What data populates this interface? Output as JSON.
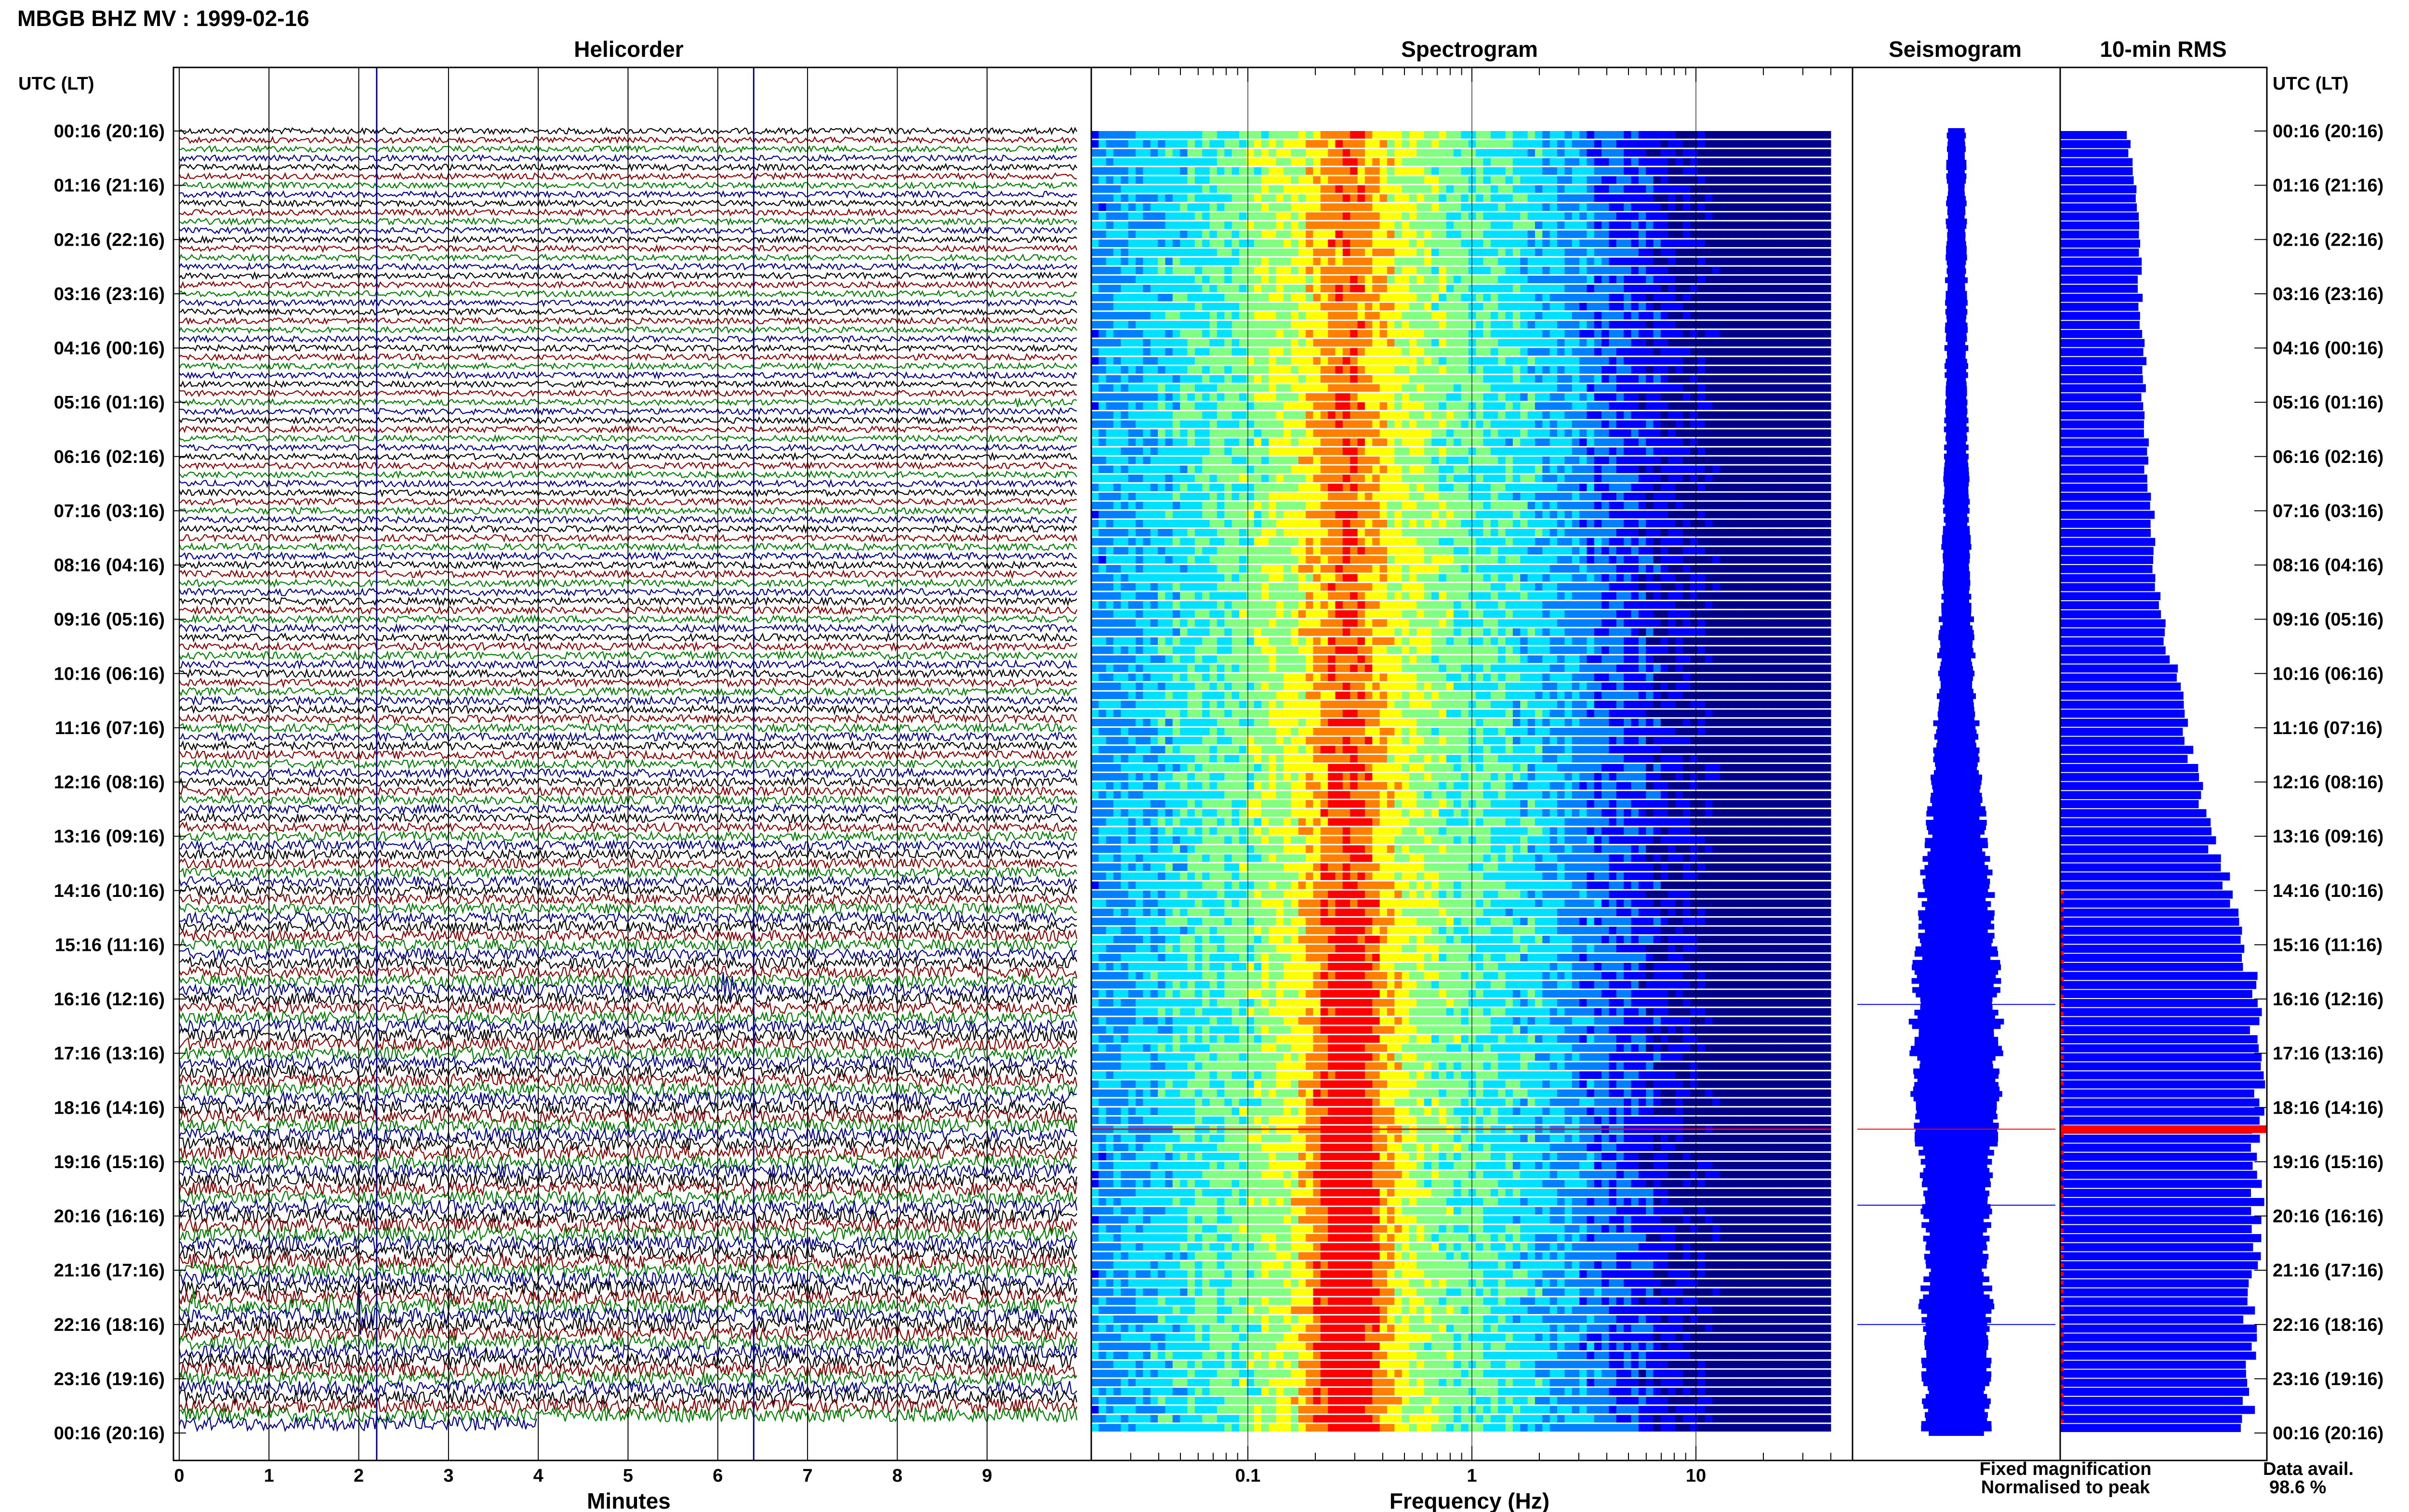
{
  "station_title": "MBGB BHZ MV : 1999-02-16",
  "time_axis_label": "UTC (LT)",
  "panels": {
    "helicorder": "Helicorder",
    "spectrogram": "Spectrogram",
    "seismogram": "Seismogram",
    "rms": "10-min RMS"
  },
  "legend": {
    "fixed": "Fixed magnification",
    "normalised": "Normalised to peak",
    "fixed_color": "#0000ff",
    "normalised_color": "#ff0000",
    "data_avail_label": "Data avail.",
    "data_avail_value": "98.6 %"
  },
  "colors": {
    "trace_cycle": [
      "#000000",
      "#8b0000",
      "#008000",
      "#00008b"
    ],
    "seismogram": "#0000ff",
    "rms": "#0000ff",
    "highlight": "#ff0000",
    "spectro_cmap": [
      "#00008b",
      "#0000ff",
      "#0080ff",
      "#00e0ff",
      "#80ff80",
      "#ffff00",
      "#ff8000",
      "#ff0000"
    ]
  },
  "chart_data": {
    "type": "heatmap",
    "time_labels": [
      "00:16 (20:16)",
      "01:16 (21:16)",
      "02:16 (22:16)",
      "03:16 (23:16)",
      "04:16 (00:16)",
      "05:16 (01:16)",
      "06:16 (02:16)",
      "07:16 (03:16)",
      "08:16 (04:16)",
      "09:16 (05:16)",
      "10:16 (06:16)",
      "11:16 (07:16)",
      "12:16 (08:16)",
      "13:16 (09:16)",
      "14:16 (10:16)",
      "15:16 (11:16)",
      "16:16 (12:16)",
      "17:16 (13:16)",
      "18:16 (14:16)",
      "19:16 (15:16)",
      "20:16 (16:16)",
      "21:16 (17:16)",
      "22:16 (18:16)",
      "23:16 (19:16)",
      "00:16 (20:16)"
    ],
    "helicorder": {
      "xlabel": "Minutes",
      "x_ticks": [
        "0",
        "1",
        "2",
        "3",
        "4",
        "5",
        "6",
        "7",
        "8",
        "9"
      ],
      "xlim": [
        0,
        10
      ],
      "rows": 144,
      "relative_amplitude_by_hour": [
        0.6,
        0.6,
        0.6,
        0.6,
        0.6,
        0.6,
        0.62,
        0.65,
        0.68,
        0.72,
        0.75,
        0.8,
        0.85,
        0.9,
        1.0,
        1.1,
        1.2,
        1.25,
        1.3,
        1.35,
        1.4,
        1.45,
        1.45,
        1.4
      ],
      "events": [
        {
          "hour": 5.0,
          "minute": 9.3,
          "amp": 0.8,
          "len_min": 0.7
        },
        {
          "hour": 15.8,
          "minute": 6.05,
          "amp": 3.5,
          "len_min": 0.3
        },
        {
          "hour": 21.8,
          "minute": 2.0,
          "amp": 4.0,
          "len_min": 0.4
        },
        {
          "hour": 21.7,
          "minute": 0.05,
          "amp": 2.2,
          "len_min": 0.5
        },
        {
          "hour": 21.7,
          "minute": 1.6,
          "amp": 1.0,
          "len_min": 0.6
        },
        {
          "hour": 22.6,
          "minute": 3.4,
          "amp": 1.2,
          "len_min": 0.4
        }
      ],
      "data_end_minute_last_row": 4.0,
      "vertical_markers_minutes": [
        2.2,
        6.4
      ]
    },
    "spectrogram": {
      "xlabel": "Frequency (Hz)",
      "x_scale": "log",
      "xlim": [
        0.02,
        50
      ],
      "x_tick_labels": [
        "0.1",
        "1",
        "10"
      ],
      "x_tick_values": [
        0.1,
        1,
        10
      ],
      "dominant_frequency_hz": 0.28,
      "high_energy_band_hz": [
        0.2,
        0.5
      ],
      "red_line_hour": 18.4
    },
    "seismogram": {
      "relative_envelope_by_hour": [
        0.08,
        0.09,
        0.09,
        0.1,
        0.1,
        0.1,
        0.11,
        0.12,
        0.13,
        0.15,
        0.17,
        0.2,
        0.23,
        0.27,
        0.32,
        0.36,
        0.4,
        0.4,
        0.38,
        0.35,
        0.3,
        0.28,
        0.34,
        0.3
      ],
      "spikes_hours": [
        16.1,
        18.4,
        19.8,
        22.0
      ]
    },
    "rms": {
      "relative_rms_by_hour": [
        0.33,
        0.36,
        0.38,
        0.39,
        0.4,
        0.41,
        0.42,
        0.44,
        0.46,
        0.5,
        0.56,
        0.61,
        0.67,
        0.73,
        0.82,
        0.9,
        0.95,
        0.96,
        0.96,
        0.95,
        0.95,
        0.93,
        0.92,
        0.91
      ],
      "highlight_hour": 18.4
    }
  }
}
